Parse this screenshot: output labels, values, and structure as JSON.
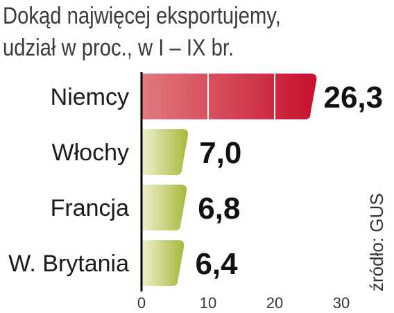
{
  "header": {
    "title_line1": "Dokąd najwięcej eksportujemy,",
    "title_line2": "udział w proc., w I – IX br."
  },
  "source": "źródło: GUS",
  "colors": {
    "highlight_start": "#e07a80",
    "highlight_end": "#c8102e",
    "highlight_label": "#c8102e",
    "bar_start": "#f0f0d0",
    "bar_end": "#a8b838",
    "axis": "#000000",
    "grid": "#ffffff"
  },
  "chart_data": {
    "type": "bar",
    "orientation": "horizontal",
    "categories": [
      "Niemcy",
      "Włochy",
      "Francja",
      "W. Brytania"
    ],
    "values": [
      26.3,
      7.0,
      6.8,
      6.4
    ],
    "value_labels": [
      "26,3",
      "7,0",
      "6,8",
      "6,4"
    ],
    "highlighted_category": "Niemcy",
    "xlim": [
      0,
      30
    ],
    "xticks": [
      0,
      10,
      20,
      30
    ],
    "xtick_labels": [
      "0",
      "10",
      "20",
      "30"
    ],
    "grid": true,
    "title": "Dokąd najwięcej eksportujemy, udział w proc., w I – IX br."
  }
}
